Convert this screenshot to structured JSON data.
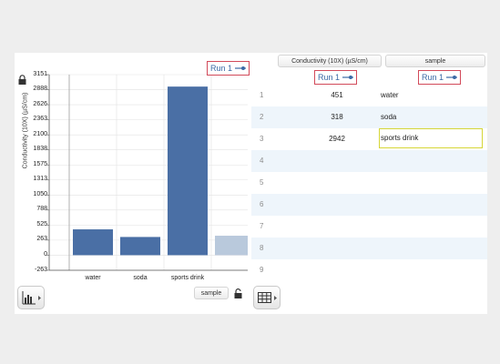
{
  "graph": {
    "y_axis_label": "Conductivity (10X) (µS/cm)",
    "legend": "Run 1",
    "x_axis_button": "sample"
  },
  "chart_data": {
    "type": "bar",
    "categories": [
      "water",
      "soda",
      "sports drink"
    ],
    "values": [
      451,
      318,
      2942
    ],
    "ylabel": "Conductivity (10X) (µS/cm)",
    "ylim": [
      -263,
      3151
    ],
    "yticks": [
      "3151",
      "2888",
      "2626",
      "2363",
      "2100",
      "1838",
      "1575",
      "1313",
      "1050",
      "788",
      "525",
      "263",
      "0",
      "-263"
    ],
    "bar_color": "#4a6fa5",
    "highlight_color": "#b9c9dc"
  },
  "table": {
    "columns": [
      {
        "header": "Conductivity (10X) (µS/cm)",
        "run": "Run 1"
      },
      {
        "header": "sample",
        "run": "Run 1"
      }
    ],
    "rows": [
      {
        "index": "1",
        "value": "451",
        "sample": "water"
      },
      {
        "index": "2",
        "value": "318",
        "sample": "soda"
      },
      {
        "index": "3",
        "value": "2942",
        "sample": "sports drink"
      },
      {
        "index": "4",
        "value": "",
        "sample": ""
      },
      {
        "index": "5",
        "value": "",
        "sample": ""
      },
      {
        "index": "6",
        "value": "",
        "sample": ""
      },
      {
        "index": "7",
        "value": "",
        "sample": ""
      },
      {
        "index": "8",
        "value": "",
        "sample": ""
      },
      {
        "index": "9",
        "value": "",
        "sample": ""
      }
    ],
    "stripe_color": "#eef5fb",
    "selected_border_color": "#d6d637"
  },
  "icons": {
    "lock_top": "lock-icon",
    "lock_bottom": "lock-open-icon",
    "graph_tool": "bar-graph-icon",
    "table_tool": "table-grid-icon"
  }
}
